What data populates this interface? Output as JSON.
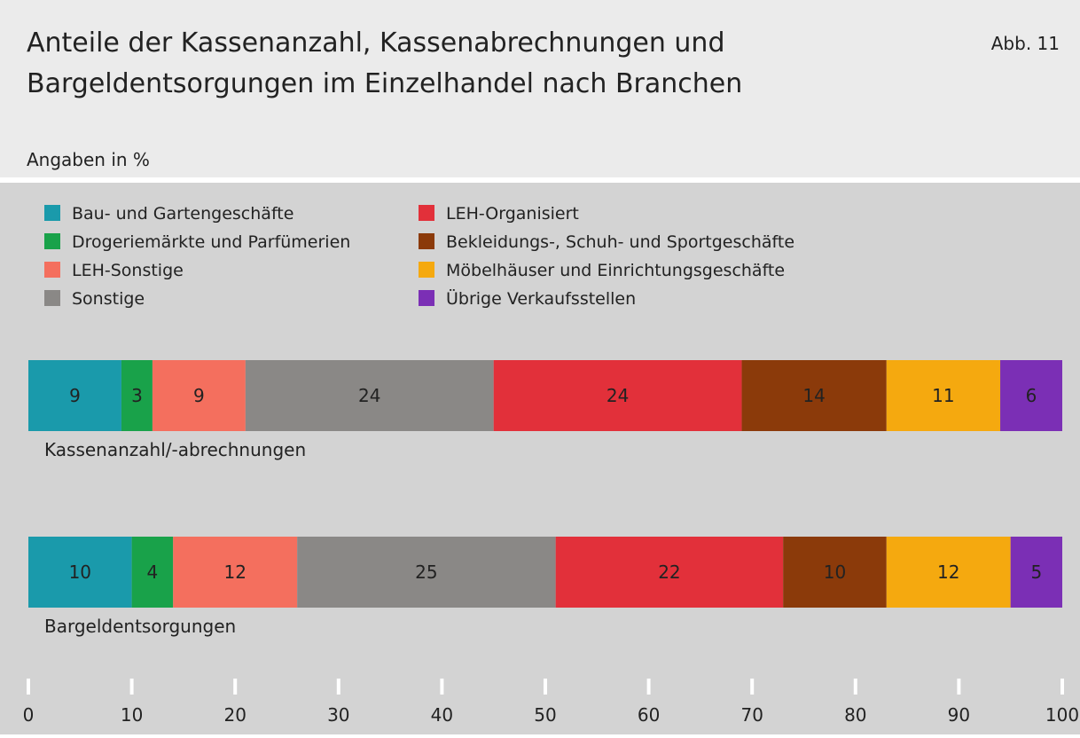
{
  "chart_data": {
    "type": "stacked_barh",
    "title": [
      "Anteile der Kassenanzahl, Kassenabrechnungen und",
      "Bargeldentsorgungen im Einzelhandel nach Branchen"
    ],
    "figure_label": "Abb. 11",
    "subtitle": "Angaben in %",
    "categories": [
      "Kassenanzahl/-abrechnungen",
      "Bargeldentsorgungen"
    ],
    "series": [
      {
        "name": "Bau- und Gartengeschäfte",
        "color": "#1a9aab",
        "values": [
          9,
          10
        ]
      },
      {
        "name": "Drogeriemärkte und Parfümerien",
        "color": "#19a24a",
        "values": [
          3,
          4
        ]
      },
      {
        "name": "LEH-Sonstige",
        "color": "#f46f5e",
        "values": [
          9,
          12
        ]
      },
      {
        "name": "Sonstige",
        "color": "#8a8886",
        "values": [
          24,
          25
        ]
      },
      {
        "name": "LEH-Organisiert",
        "color": "#e2303a",
        "values": [
          24,
          22
        ]
      },
      {
        "name": "Bekleidungs-, Schuh- und Sportgeschäfte",
        "color": "#8b3a0a",
        "values": [
          14,
          10
        ]
      },
      {
        "name": "Möbelhäuser und Einrichtungsgeschäfte",
        "color": "#f5a90f",
        "values": [
          11,
          12
        ]
      },
      {
        "name": "Übrige Verkaufsstellen",
        "color": "#7b2fb5",
        "values": [
          6,
          5
        ]
      }
    ],
    "xlim": [
      0,
      100
    ],
    "xticks": [
      0,
      10,
      20,
      30,
      40,
      50,
      60,
      70,
      80,
      90,
      100
    ],
    "legend": "top-left"
  }
}
